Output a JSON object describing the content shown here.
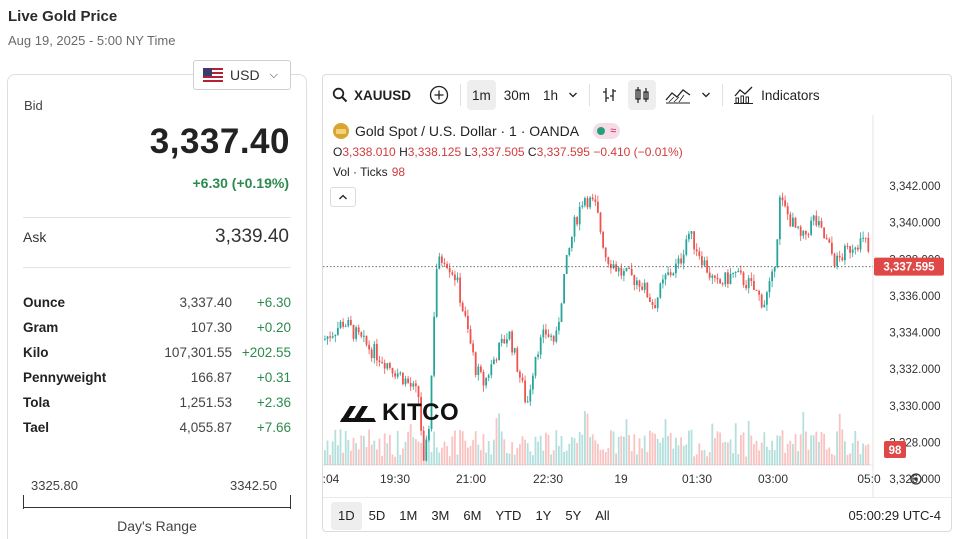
{
  "page": {
    "title": "Live Gold Price",
    "subtitle": "Aug 19, 2025 - 5:00 NY Time"
  },
  "currency": {
    "selected": "USD",
    "flag_icon": "us-flag-icon"
  },
  "bid": {
    "label": "Bid",
    "value": "3,337.40",
    "change": "+6.30 (+0.19%)"
  },
  "ask": {
    "label": "Ask",
    "value": "3,339.40"
  },
  "units": [
    {
      "name": "Ounce",
      "price": "3,337.40",
      "change": "+6.30"
    },
    {
      "name": "Gram",
      "price": "107.30",
      "change": "+0.20"
    },
    {
      "name": "Kilo",
      "price": "107,301.55",
      "change": "+202.55"
    },
    {
      "name": "Pennyweight",
      "price": "166.87",
      "change": "+0.31"
    },
    {
      "name": "Tola",
      "price": "1,251.53",
      "change": "+2.36"
    },
    {
      "name": "Tael",
      "price": "4,055.87",
      "change": "+7.66"
    }
  ],
  "days_range": {
    "low": "3325.80",
    "high": "3342.50",
    "label": "Day's Range"
  },
  "toolbar": {
    "symbol": "XAUUSD",
    "intervals": [
      "1m",
      "30m",
      "1h"
    ],
    "active_interval": "1m",
    "indicators_label": "Indicators"
  },
  "chart_header": {
    "title": "Gold Spot / U.S. Dollar · 1 · OANDA",
    "open_label": "O",
    "open": "3,338.010",
    "high_label": "H",
    "high": "3,338.125",
    "low_label": "L",
    "low": "3,337.505",
    "close_label": "C",
    "close": "3,337.595",
    "change": "−0.410 (−0.01%)",
    "vol_label": "Vol · Ticks",
    "vol_value": "98"
  },
  "watermark": "KITCO",
  "time_ranges": [
    "1D",
    "5D",
    "1M",
    "3M",
    "6M",
    "YTD",
    "1Y",
    "5Y",
    "All"
  ],
  "active_range": "1D",
  "clock": "05:00:29 UTC-4",
  "colors": {
    "up": "#26a69a",
    "down": "#ef5350",
    "positive_text": "#2d8a4f",
    "price_tag": "#e04848"
  },
  "chart_data": {
    "type": "candlestick",
    "symbol": "XAUUSD",
    "y_ticks": [
      "3,342.000",
      "3,340.000",
      "3,338.000",
      "3,336.000",
      "3,334.000",
      "3,332.000",
      "3,330.000",
      "3,328.000",
      "3,326.000"
    ],
    "ylim": [
      3325.0,
      3342.8
    ],
    "x_ticks": [
      ":04",
      "19:30",
      "21:00",
      "22:30",
      "19",
      "01:30",
      "03:00",
      "05:0"
    ],
    "last_price": "3,337.595",
    "last_volume": "98",
    "keypoints": [
      [
        0,
        3333.6
      ],
      [
        20,
        3334.6
      ],
      [
        40,
        3333.4
      ],
      [
        60,
        3332.5
      ],
      [
        80,
        3331.5
      ],
      [
        95,
        3330.5
      ],
      [
        100,
        3326.5
      ],
      [
        106,
        3329.5
      ],
      [
        112,
        3337.5
      ],
      [
        120,
        3338.2
      ],
      [
        132,
        3337.0
      ],
      [
        142,
        3334.5
      ],
      [
        152,
        3332.0
      ],
      [
        160,
        3331.2
      ],
      [
        172,
        3332.8
      ],
      [
        185,
        3334.0
      ],
      [
        197,
        3331.4
      ],
      [
        203,
        3330.0
      ],
      [
        212,
        3333.0
      ],
      [
        222,
        3334.0
      ],
      [
        232,
        3333.5
      ],
      [
        240,
        3337.0
      ],
      [
        250,
        3339.8
      ],
      [
        260,
        3341.5
      ],
      [
        272,
        3340.8
      ],
      [
        282,
        3338.2
      ],
      [
        298,
        3337.2
      ],
      [
        316,
        3336.8
      ],
      [
        330,
        3335.5
      ],
      [
        342,
        3337.0
      ],
      [
        356,
        3337.8
      ],
      [
        364,
        3339.5
      ],
      [
        376,
        3338.3
      ],
      [
        392,
        3336.5
      ],
      [
        410,
        3337.2
      ],
      [
        426,
        3336.6
      ],
      [
        440,
        3335.6
      ],
      [
        448,
        3336.8
      ],
      [
        452,
        3338.5
      ],
      [
        456,
        3341.2
      ],
      [
        466,
        3340.2
      ],
      [
        478,
        3339.0
      ],
      [
        490,
        3340.2
      ],
      [
        502,
        3339.0
      ],
      [
        512,
        3337.8
      ],
      [
        524,
        3338.5
      ],
      [
        532,
        3339.0
      ],
      [
        542,
        3338.9
      ],
      [
        548,
        3337.6
      ]
    ]
  }
}
